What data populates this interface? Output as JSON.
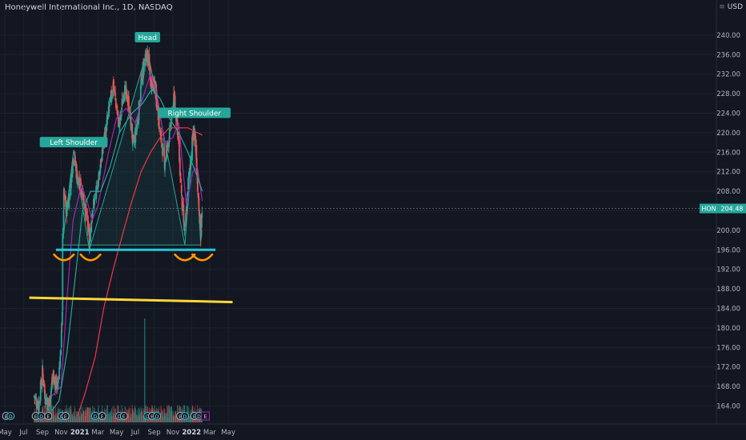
{
  "header": {
    "title": "Honeywell International Inc., 1D, NASDAQ",
    "currency": "USD"
  },
  "chart_data": {
    "type": "candlestick",
    "title": "Honeywell International Inc., 1D, NASDAQ",
    "symbol": "HON",
    "last_price": "204.48",
    "currency": "USD",
    "y_axis": {
      "ylim": [
        162,
        244
      ],
      "ticks": [
        "164.00",
        "168.00",
        "172.00",
        "176.00",
        "180.00",
        "184.00",
        "188.00",
        "192.00",
        "196.00",
        "200.00",
        "204.00",
        "208.00",
        "212.00",
        "216.00",
        "220.00",
        "224.00",
        "228.00",
        "232.00",
        "236.00",
        "240.00"
      ]
    },
    "x_axis": {
      "ticks": [
        "May",
        "Jul",
        "Sep",
        "Nov",
        "2021",
        "Mar",
        "May",
        "Jul",
        "Sep",
        "Nov",
        "2022",
        "Mar",
        "May"
      ]
    },
    "grid": true,
    "price_path": [
      [
        "2020-08-05",
        166
      ],
      [
        "2020-08-20",
        164
      ],
      [
        "2020-09-01",
        171
      ],
      [
        "2020-09-10",
        166
      ],
      [
        "2020-09-22",
        164
      ],
      [
        "2020-10-05",
        170
      ],
      [
        "2020-10-20",
        168
      ],
      [
        "2020-11-01",
        176
      ],
      [
        "2020-11-05",
        184
      ],
      [
        "2020-11-06",
        198
      ],
      [
        "2020-11-10",
        207
      ],
      [
        "2020-11-20",
        204
      ],
      [
        "2020-12-01",
        209
      ],
      [
        "2020-12-12",
        216
      ],
      [
        "2020-12-25",
        210
      ],
      [
        "2021-01-10",
        208
      ],
      [
        "2021-01-25",
        202
      ],
      [
        "2021-02-01",
        197
      ],
      [
        "2021-02-10",
        204
      ],
      [
        "2021-02-25",
        208
      ],
      [
        "2021-03-15",
        216
      ],
      [
        "2021-04-05",
        224
      ],
      [
        "2021-04-20",
        230
      ],
      [
        "2021-05-10",
        221
      ],
      [
        "2021-05-25",
        229
      ],
      [
        "2021-06-10",
        226
      ],
      [
        "2021-06-25",
        217
      ],
      [
        "2021-07-10",
        223
      ],
      [
        "2021-07-25",
        233
      ],
      [
        "2021-08-10",
        236
      ],
      [
        "2021-08-20",
        231
      ],
      [
        "2021-09-05",
        229
      ],
      [
        "2021-09-20",
        220
      ],
      [
        "2021-10-05",
        214
      ],
      [
        "2021-10-20",
        219
      ],
      [
        "2021-11-05",
        227
      ],
      [
        "2021-11-15",
        222
      ],
      [
        "2021-12-01",
        205
      ],
      [
        "2021-12-10",
        199
      ],
      [
        "2021-12-20",
        209
      ],
      [
        "2022-01-05",
        219
      ],
      [
        "2022-01-10",
        221
      ],
      [
        "2022-01-18",
        212
      ],
      [
        "2022-01-25",
        205
      ],
      [
        "2022-01-31",
        198
      ],
      [
        "2022-02-05",
        204.48
      ]
    ],
    "moving_averages": [
      {
        "color": "#9c27b0",
        "points": [
          [
            "2020-10-01",
            166
          ],
          [
            "2020-11-01",
            168
          ],
          [
            "2020-11-20",
            186
          ],
          [
            "2020-12-10",
            202
          ],
          [
            "2021-01-05",
            209
          ],
          [
            "2021-01-25",
            206
          ],
          [
            "2021-02-10",
            202
          ],
          [
            "2021-03-01",
            205
          ],
          [
            "2021-04-05",
            216
          ],
          [
            "2021-05-01",
            223
          ],
          [
            "2021-06-01",
            225
          ],
          [
            "2021-07-01",
            222
          ],
          [
            "2021-07-25",
            227
          ],
          [
            "2021-08-20",
            232
          ],
          [
            "2021-09-10",
            228
          ],
          [
            "2021-10-05",
            218
          ],
          [
            "2021-11-01",
            219
          ],
          [
            "2021-11-20",
            222
          ],
          [
            "2021-12-15",
            205
          ],
          [
            "2022-01-05",
            212
          ],
          [
            "2022-01-20",
            213
          ],
          [
            "2022-02-05",
            206
          ]
        ]
      },
      {
        "color": "#26a69a",
        "points": [
          [
            "2020-10-01",
            163
          ],
          [
            "2020-10-25",
            165
          ],
          [
            "2020-11-20",
            175
          ],
          [
            "2020-12-20",
            192
          ],
          [
            "2021-01-10",
            204
          ],
          [
            "2021-02-05",
            208
          ],
          [
            "2021-03-10",
            208
          ],
          [
            "2021-04-10",
            213
          ],
          [
            "2021-05-10",
            220
          ],
          [
            "2021-06-20",
            224
          ],
          [
            "2021-07-25",
            226
          ],
          [
            "2021-08-25",
            229
          ],
          [
            "2021-09-20",
            227
          ],
          [
            "2021-10-20",
            223
          ],
          [
            "2021-11-20",
            220
          ],
          [
            "2021-12-20",
            216
          ],
          [
            "2022-01-20",
            211
          ],
          [
            "2022-02-05",
            208
          ]
        ]
      },
      {
        "color": "#f23645",
        "points": [
          [
            "2020-12-25",
            162
          ],
          [
            "2021-01-20",
            167
          ],
          [
            "2021-02-20",
            174
          ],
          [
            "2021-03-20",
            184
          ],
          [
            "2021-04-20",
            192
          ],
          [
            "2021-05-20",
            199
          ],
          [
            "2021-06-20",
            206
          ],
          [
            "2021-07-20",
            212
          ],
          [
            "2021-08-20",
            216
          ],
          [
            "2021-09-20",
            219
          ],
          [
            "2021-10-20",
            221
          ],
          [
            "2021-11-20",
            221
          ],
          [
            "2021-12-20",
            221
          ],
          [
            "2022-01-20",
            220
          ],
          [
            "2022-02-05",
            219.5
          ]
        ]
      }
    ],
    "annotations": {
      "labels": [
        {
          "text": "Left Shoulder",
          "date": "2020-12-12",
          "price": 218
        },
        {
          "text": "Head",
          "date": "2021-08-10",
          "price": 239.5
        },
        {
          "text": "Right Shoulder",
          "date": "2022-01-10",
          "price": 224
        }
      ],
      "neckline": {
        "color": "#26c6da",
        "price": 196.0
      },
      "support": {
        "color": "#fdd835",
        "from": [
          "2020-07-20",
          186.2
        ],
        "to": [
          "2022-05-15",
          185.3
        ]
      }
    },
    "price_label": {
      "text": "204.48",
      "symbol": "HON"
    }
  }
}
